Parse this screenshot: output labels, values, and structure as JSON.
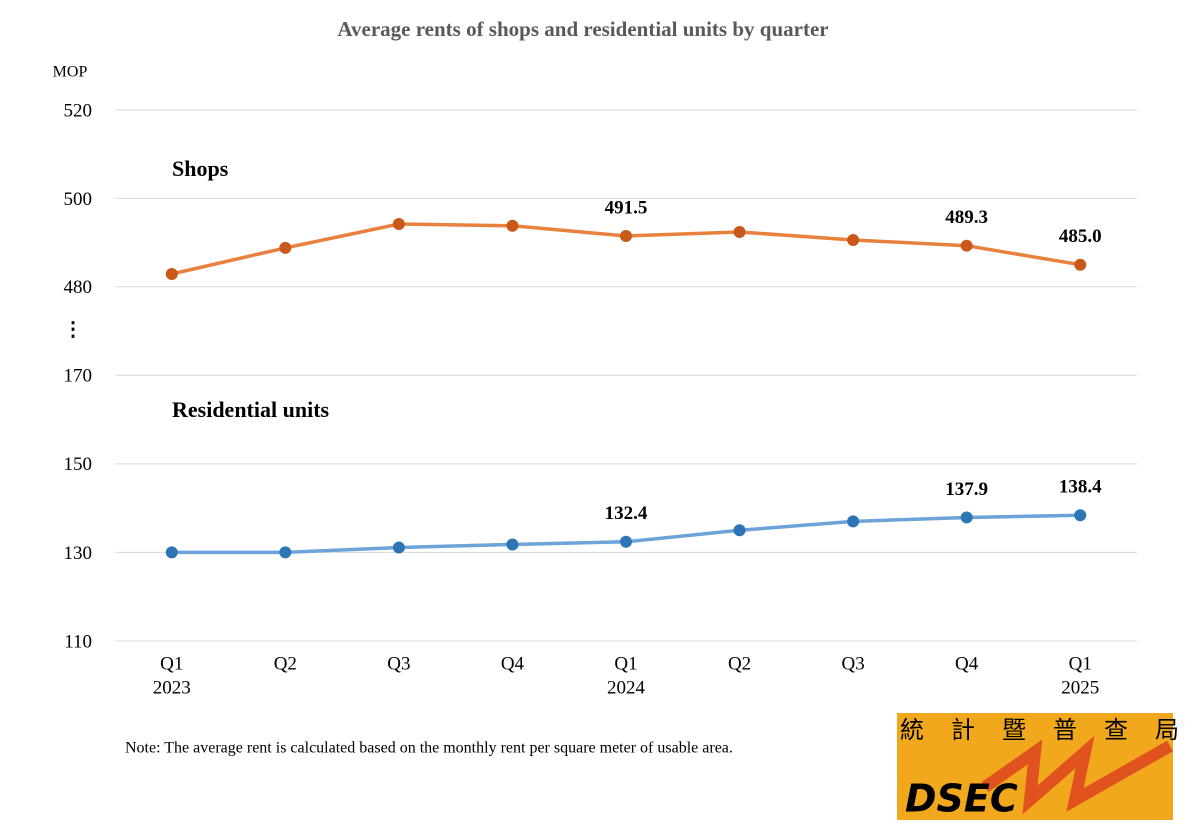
{
  "chart_data": {
    "type": "line",
    "title": "Average rents of shops and residential units by quarter",
    "y_unit": "MOP",
    "axis_break": "⋮",
    "categories": [
      "Q1",
      "Q2",
      "Q3",
      "Q4",
      "Q1",
      "Q2",
      "Q3",
      "Q4",
      "Q1"
    ],
    "x_sublabels": [
      "2023",
      null,
      null,
      null,
      "2024",
      null,
      null,
      null,
      "2025"
    ],
    "grid": true,
    "panels": [
      {
        "name": "Shops",
        "color": "#E8803E",
        "marker_color": "#C9591A",
        "values": [
          482.9,
          488.8,
          494.2,
          493.8,
          491.5,
          492.4,
          490.6,
          489.3,
          485.0
        ],
        "value_labels": [
          null,
          null,
          null,
          null,
          "491.5",
          null,
          null,
          "489.3",
          "485.0"
        ],
        "ylim": [
          470,
          520
        ],
        "yticks": [
          480,
          500,
          520
        ]
      },
      {
        "name": "Residential units",
        "color": "#6CA3DA",
        "marker_color": "#2E75B6",
        "values": [
          130.0,
          130.0,
          131.1,
          131.8,
          132.4,
          135.0,
          137.0,
          137.9,
          138.4
        ],
        "value_labels": [
          null,
          null,
          null,
          null,
          "132.4",
          null,
          null,
          "137.9",
          "138.4"
        ],
        "ylim": [
          110,
          180
        ],
        "yticks": [
          110,
          130,
          150,
          170
        ]
      }
    ],
    "note": "Note: The average rent is calculated based on the monthly rent per square meter of usable area."
  },
  "logo": {
    "chinese": [
      "統",
      "計",
      "暨",
      "普",
      "查",
      "局"
    ],
    "latin": "DSEC"
  }
}
